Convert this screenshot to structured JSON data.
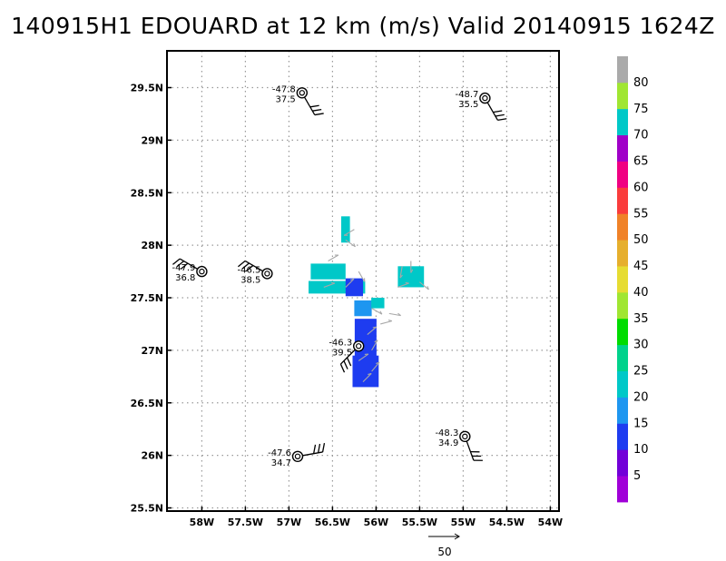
{
  "chart_data": {
    "type": "heatmap",
    "title": "140915H1 EDOUARD at 12 km (m/s) Valid 20140915 1624Z",
    "xlabel": "",
    "ylabel": "",
    "xlim": [
      -58.4,
      -53.9
    ],
    "ylim": [
      25.47,
      29.85
    ],
    "grid": true,
    "x_ticks": [
      -58,
      -57.5,
      -57,
      -56.5,
      -56,
      -55.5,
      -55,
      -54.5,
      -54
    ],
    "x_tick_labels": [
      "58W",
      "57.5W",
      "57W",
      "56.5W",
      "56W",
      "55.5W",
      "55W",
      "54.5W",
      "54W"
    ],
    "y_ticks": [
      25.5,
      26,
      26.5,
      27,
      27.5,
      28,
      28.5,
      29,
      29.5
    ],
    "y_tick_labels": [
      "25.5N",
      "26N",
      "26.5N",
      "27N",
      "27.5N",
      "28N",
      "28.5N",
      "29N",
      "29.5N"
    ],
    "colorbar": {
      "position": "right",
      "bins": [
        {
          "min": 0,
          "max": 5,
          "color": "#a000d8"
        },
        {
          "min": 5,
          "max": 10,
          "color": "#7200d8"
        },
        {
          "min": 10,
          "max": 15,
          "color": "#1e3cf0"
        },
        {
          "min": 15,
          "max": 20,
          "color": "#1e96f0"
        },
        {
          "min": 20,
          "max": 25,
          "color": "#00c8c8"
        },
        {
          "min": 25,
          "max": 30,
          "color": "#00d28c"
        },
        {
          "min": 30,
          "max": 35,
          "color": "#00dc00"
        },
        {
          "min": 35,
          "max": 40,
          "color": "#a0e632"
        },
        {
          "min": 40,
          "max": 45,
          "color": "#e6dc32"
        },
        {
          "min": 45,
          "max": 50,
          "color": "#e6af2d"
        },
        {
          "min": 50,
          "max": 55,
          "color": "#f08228"
        },
        {
          "min": 55,
          "max": 60,
          "color": "#fa3c3c"
        },
        {
          "min": 60,
          "max": 65,
          "color": "#f00082"
        },
        {
          "min": 65,
          "max": 70,
          "color": "#a000c8"
        },
        {
          "min": 70,
          "max": 75,
          "color": "#00c8c8"
        },
        {
          "min": 75,
          "max": 80,
          "color": "#a0e632"
        },
        {
          "min": 80,
          "max": 85,
          "color": "#aaaaaa"
        }
      ],
      "labels": [
        "5",
        "10",
        "15",
        "20",
        "25",
        "30",
        "35",
        "40",
        "45",
        "50",
        "55",
        "60",
        "65",
        "70",
        "75",
        "80"
      ]
    },
    "wind_field": [
      {
        "lon": -56.35,
        "lat": 28.15,
        "w": 0.1,
        "h": 0.25,
        "value": 22
      },
      {
        "lon": -56.45,
        "lat": 27.6,
        "w": 0.65,
        "h": 0.12,
        "value": 22
      },
      {
        "lon": -56.55,
        "lat": 27.75,
        "w": 0.4,
        "h": 0.15,
        "value": 23
      },
      {
        "lon": -56.25,
        "lat": 27.6,
        "w": 0.2,
        "h": 0.17,
        "value": 13
      },
      {
        "lon": -56.15,
        "lat": 27.4,
        "w": 0.2,
        "h": 0.15,
        "value": 17
      },
      {
        "lon": -55.98,
        "lat": 27.45,
        "w": 0.15,
        "h": 0.1,
        "value": 24
      },
      {
        "lon": -56.12,
        "lat": 27.1,
        "w": 0.25,
        "h": 0.4,
        "value": 13
      },
      {
        "lon": -56.12,
        "lat": 26.8,
        "w": 0.3,
        "h": 0.3,
        "value": 12
      },
      {
        "lon": -55.6,
        "lat": 27.7,
        "w": 0.3,
        "h": 0.2,
        "value": 23
      }
    ],
    "wind_vector_scale": "50",
    "dropsondes": [
      {
        "lon": -56.85,
        "lat": 29.45,
        "value1": "-47.8",
        "value2": "37.5"
      },
      {
        "lon": -54.75,
        "lat": 29.4,
        "value1": "-48.7",
        "value2": "35.5"
      },
      {
        "lon": -58.0,
        "lat": 27.75,
        "value1": "-47.9",
        "value2": "36.8"
      },
      {
        "lon": -57.25,
        "lat": 27.73,
        "value1": "-46.5",
        "value2": "38.5"
      },
      {
        "lon": -56.2,
        "lat": 27.04,
        "value1": "-46.3",
        "value2": "39.5"
      },
      {
        "lon": -54.98,
        "lat": 26.18,
        "value1": "-48.3",
        "value2": "34.9"
      },
      {
        "lon": -56.9,
        "lat": 25.99,
        "value1": "-47.6",
        "value2": "34.7"
      }
    ]
  }
}
